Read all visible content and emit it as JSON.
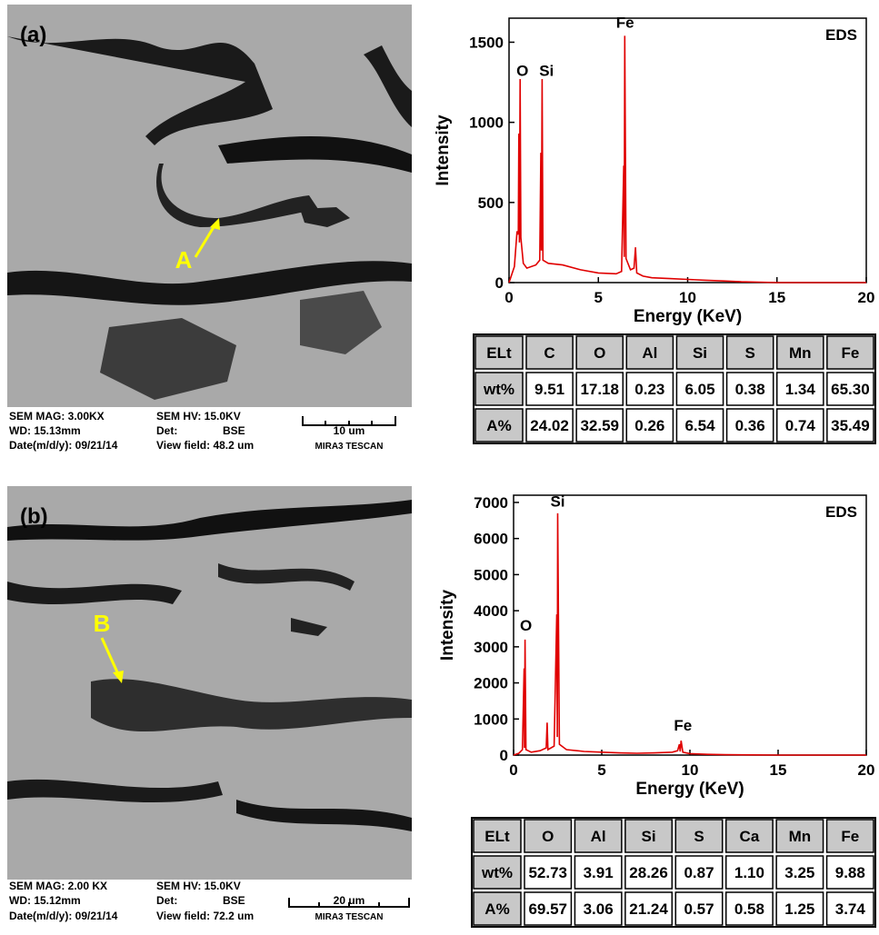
{
  "panels": [
    {
      "label": "(a)",
      "sem": {
        "marker": "A",
        "mag": "SEM MAG: 3.00KX",
        "hv": "SEM HV: 15.0KV",
        "wd": "WD: 15.13mm",
        "det_label": "Det:",
        "det": "BSE",
        "date": "Date(m/d/y): 09/21/14",
        "view_field": "View field: 48.2 um",
        "scale": "10 um",
        "brand": "MIRA3 TESCAN"
      },
      "table": {
        "header": [
          "ELt",
          "C",
          "O",
          "Al",
          "Si",
          "S",
          "Mn",
          "Fe"
        ],
        "rows": [
          [
            "wt%",
            "9.51",
            "17.18",
            "0.23",
            "6.05",
            "0.38",
            "1.34",
            "65.30"
          ],
          [
            "A%",
            "24.02",
            "32.59",
            "0.26",
            "6.54",
            "0.36",
            "0.74",
            "35.49"
          ]
        ]
      }
    },
    {
      "label": "(b)",
      "sem": {
        "marker": "B",
        "mag": "SEM MAG: 2.00 KX",
        "hv": "SEM HV: 15.0KV",
        "wd": "WD: 15.12mm",
        "det_label": "Det:",
        "det": "BSE",
        "date": "Date(m/d/y): 09/21/14",
        "view_field": "View field: 72.2 um",
        "scale": "20 um",
        "brand": "MIRA3 TESCAN"
      },
      "table": {
        "header": [
          "ELt",
          "O",
          "Al",
          "Si",
          "S",
          "Ca",
          "Mn",
          "Fe"
        ],
        "rows": [
          [
            "wt%",
            "52.73",
            "3.91",
            "28.26",
            "0.87",
            "1.10",
            "3.25",
            "9.88"
          ],
          [
            "A%",
            "69.57",
            "3.06",
            "21.24",
            "0.57",
            "0.58",
            "1.25",
            "3.74"
          ]
        ]
      }
    }
  ],
  "chart_data": [
    {
      "type": "line",
      "label": "EDS",
      "x_label": "Energy (KeV)",
      "y_label": "Intensity",
      "color": "#e00000",
      "xlim": [
        0,
        20
      ],
      "xticks": [
        0,
        5,
        10,
        15,
        20
      ],
      "ylim": [
        0,
        1650
      ],
      "yticks": [
        0,
        500,
        1000,
        1500
      ],
      "x": [
        0,
        0.3,
        0.45,
        0.52,
        0.55,
        0.58,
        0.62,
        0.66,
        0.8,
        1.0,
        1.5,
        1.72,
        1.78,
        1.81,
        1.85,
        1.9,
        2.2,
        3,
        4,
        5,
        6,
        6.3,
        6.42,
        6.45,
        6.48,
        6.55,
        6.8,
        7.0,
        7.08,
        7.15,
        7.5,
        8,
        9,
        10,
        11,
        12,
        13,
        14,
        15,
        20
      ],
      "values": [
        0,
        100,
        320,
        300,
        930,
        250,
        1270,
        280,
        120,
        90,
        110,
        140,
        810,
        200,
        1270,
        140,
        120,
        110,
        80,
        60,
        55,
        70,
        730,
        160,
        1540,
        150,
        80,
        90,
        220,
        60,
        40,
        30,
        25,
        20,
        15,
        10,
        5,
        3,
        0,
        0
      ],
      "annotations": [
        {
          "text": "O",
          "x": 0.75,
          "y": 1290
        },
        {
          "text": "Si",
          "x": 2.1,
          "y": 1290
        },
        {
          "text": "Fe",
          "x": 6.5,
          "y": 1590
        }
      ]
    },
    {
      "type": "line",
      "label": "EDS",
      "x_label": "Energy (KeV)",
      "y_label": "Intensity",
      "color": "#e00000",
      "xlim": [
        0,
        20
      ],
      "xticks": [
        0,
        5,
        10,
        15,
        20
      ],
      "ylim": [
        0,
        7200
      ],
      "yticks": [
        0,
        1000,
        2000,
        3000,
        4000,
        5000,
        6000,
        7000
      ],
      "x": [
        0,
        0.3,
        0.5,
        0.6,
        0.62,
        0.65,
        0.7,
        1.0,
        1.5,
        1.85,
        1.9,
        1.95,
        2.3,
        2.45,
        2.48,
        2.5,
        2.6,
        3,
        4,
        5,
        6,
        7,
        8,
        9,
        9.3,
        9.4,
        9.45,
        9.5,
        9.6,
        10,
        11,
        12,
        15,
        20
      ],
      "values": [
        0,
        50,
        150,
        2400,
        200,
        3200,
        150,
        80,
        120,
        200,
        900,
        150,
        250,
        3900,
        500,
        6700,
        300,
        150,
        100,
        80,
        60,
        50,
        60,
        80,
        120,
        300,
        100,
        400,
        80,
        40,
        20,
        10,
        0,
        0
      ],
      "annotations": [
        {
          "text": "O",
          "x": 0.7,
          "y": 3450
        },
        {
          "text": "Si",
          "x": 2.5,
          "y": 6880
        },
        {
          "text": "Fe",
          "x": 9.6,
          "y": 680
        }
      ]
    }
  ]
}
